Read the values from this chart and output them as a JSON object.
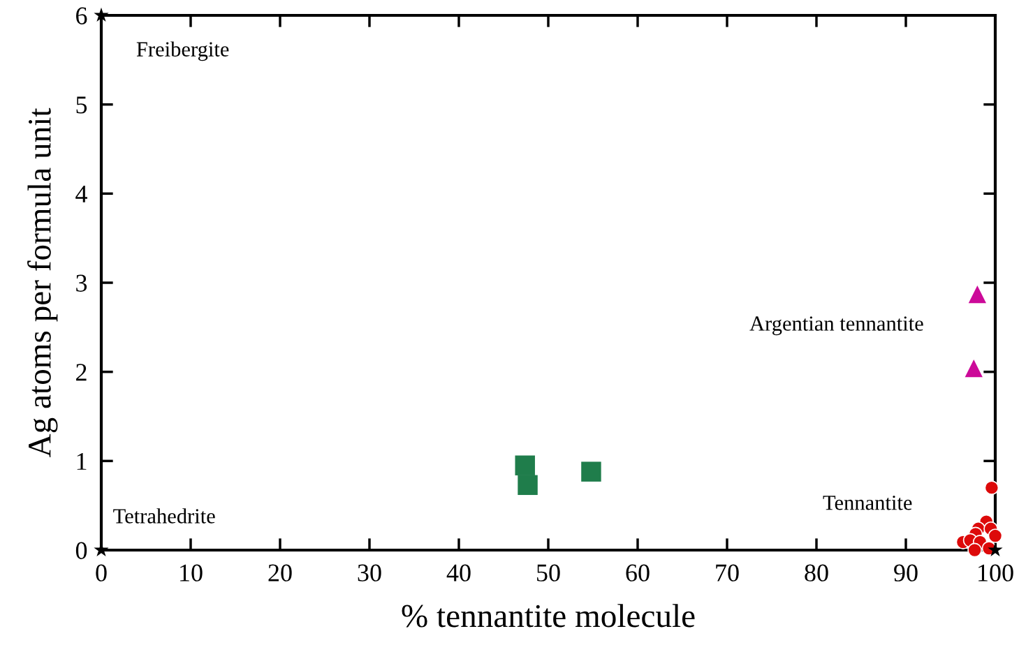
{
  "chart_data": {
    "type": "scatter",
    "xlabel": "% tennantite molecule",
    "ylabel": "Ag atoms per formula unit",
    "xlim": [
      0,
      100
    ],
    "ylim": [
      0,
      6
    ],
    "xticks": [
      0,
      10,
      20,
      30,
      40,
      50,
      60,
      70,
      80,
      90,
      100
    ],
    "yticks": [
      0,
      1,
      2,
      3,
      4,
      5,
      6
    ],
    "grid": false,
    "legend": false,
    "series": [
      {
        "color": "#dd0a0a",
        "marker": "circle",
        "x": [
          99.6,
          99.0,
          98.1,
          99.5,
          97.8,
          100.0,
          96.4,
          97.2,
          98.3,
          97.7,
          99.3
        ],
        "values": [
          0.7,
          0.32,
          0.24,
          0.24,
          0.18,
          0.16,
          0.09,
          0.11,
          0.09,
          0.0,
          0.02
        ]
      },
      {
        "color": "#1f7d4b",
        "marker": "square",
        "x": [
          47.4,
          47.7,
          54.8
        ],
        "values": [
          0.95,
          0.73,
          0.88
        ]
      },
      {
        "color": "#cc0a99",
        "marker": "triangle",
        "x": [
          98.0,
          97.6
        ],
        "values": [
          2.87,
          2.04
        ]
      },
      {
        "color": "#000000",
        "marker": "star",
        "x": [
          0,
          0,
          100
        ],
        "values": [
          6,
          0,
          0
        ]
      }
    ],
    "annotations": [
      "Freibergite",
      "Tetrahedrite",
      "Tennantite",
      "Argentian tennantite"
    ]
  }
}
